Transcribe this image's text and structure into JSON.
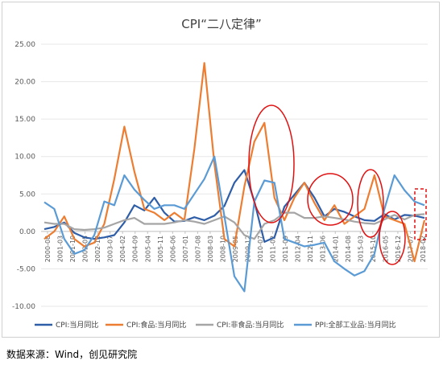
{
  "chart_data": {
    "type": "line",
    "title": "CPI“二八定律”",
    "xlabel": "",
    "ylabel": "",
    "ylim": [
      -10,
      25
    ],
    "y_ticks": [
      "25.00",
      "20.00",
      "15.00",
      "10.00",
      "5.00",
      "0.00",
      "-5.00",
      "-10.00"
    ],
    "y_tick_values": [
      25,
      20,
      15,
      10,
      5,
      0,
      -5,
      -10
    ],
    "x_tick_labels": [
      "2000-08",
      "2001-03",
      "2001-10",
      "2002-05",
      "2002-12",
      "2003-07",
      "2004-02",
      "2004-09",
      "2005-04",
      "2005-11",
      "2006-06",
      "2007-01",
      "2007-08",
      "2008-03",
      "2008-10",
      "2009-05",
      "2009-12",
      "2010-07",
      "2011-02",
      "2011-09",
      "2012-04",
      "2012-11",
      "2013-06",
      "2014-01",
      "2014-08",
      "2015-03",
      "2015-10",
      "2016-05",
      "2016-12",
      "2017-07",
      "2018-02"
    ],
    "legend_placement": "bottom",
    "grid": true,
    "series": [
      {
        "name": "CPI:当月同比",
        "color": "#2f5ea8",
        "values": [
          0.3,
          0.6,
          1.2,
          -0.2,
          -0.8,
          -1.0,
          -0.8,
          -0.5,
          1.2,
          3.5,
          2.8,
          4.5,
          2.5,
          1.3,
          1.4,
          1.9,
          1.5,
          2.1,
          3.4,
          6.5,
          8.2,
          4.0,
          -1.4,
          -0.8,
          3.3,
          4.9,
          6.5,
          4.5,
          2.0,
          3.0,
          2.6,
          2.0,
          1.5,
          1.4,
          2.3,
          1.6,
          2.2,
          2.1,
          1.8
        ]
      },
      {
        "name": "CPI:食品:当月同比",
        "color": "#ed7d31",
        "values": [
          -1.0,
          0.0,
          2.0,
          -1.0,
          -2.0,
          -1.5,
          1.0,
          7.0,
          14.0,
          8.0,
          3.0,
          2.5,
          1.5,
          2.5,
          1.5,
          11.0,
          22.5,
          9.0,
          -1.0,
          -2.0,
          6.0,
          12.0,
          14.5,
          4.5,
          1.5,
          4.5,
          6.5,
          3.8,
          1.5,
          3.5,
          1.0,
          2.0,
          3.0,
          7.5,
          2.0,
          1.5,
          1.0,
          -4.0,
          1.5
        ]
      },
      {
        "name": "CPI:非食品:当月同比",
        "color": "#a5a5a5",
        "values": [
          1.2,
          1.0,
          1.0,
          0.3,
          0.2,
          0.3,
          0.5,
          1.0,
          1.5,
          1.8,
          1.0,
          1.0,
          1.0,
          1.2,
          1.5,
          1.3,
          1.0,
          1.5,
          2.0,
          1.2,
          -0.5,
          -1.0,
          1.0,
          1.5,
          2.5,
          2.5,
          1.8,
          1.8,
          2.0,
          1.8,
          1.6,
          1.3,
          1.1,
          1.0,
          1.6,
          2.2,
          1.6,
          2.2,
          2.3
        ]
      },
      {
        "name": "PPI:全部工业品:当月同比",
        "color": "#5b9bd5",
        "values": [
          3.9,
          3.0,
          -1.0,
          -3.0,
          -2.5,
          -0.5,
          4.0,
          3.5,
          7.5,
          5.6,
          4.2,
          3.0,
          3.5,
          3.5,
          3.0,
          5.0,
          7.0,
          10.0,
          2.0,
          -6.0,
          -8.0,
          4.0,
          6.8,
          6.5,
          -1.0,
          -1.5,
          -2.0,
          -1.8,
          -1.5,
          -4.0,
          -5.0,
          -5.9,
          -5.3,
          -3.0,
          3.0,
          7.5,
          5.5,
          4.0,
          3.5
        ]
      }
    ]
  },
  "source": "数据来源：Wind，创见研究院"
}
